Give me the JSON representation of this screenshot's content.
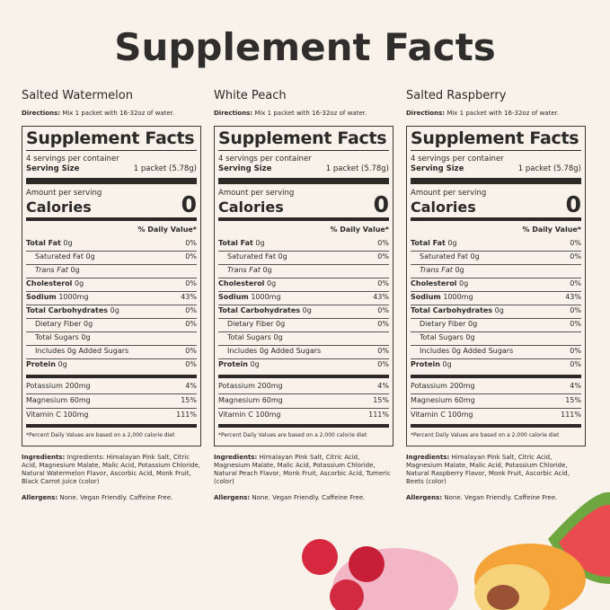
{
  "title": "Supplement Facts",
  "products": [
    {
      "name": "Salted Watermelon",
      "directions_label": "Directions:",
      "directions": "Mix 1 packet with 16-32oz of water.",
      "panel_title": "Supplement Facts",
      "servings": "4 servings per container",
      "serving_size_label": "Serving Size",
      "serving_size": "1 packet (5.78g)",
      "amount_label": "Amount per serving",
      "calories_label": "Calories",
      "calories": 0,
      "dv_header": "% Daily Value*",
      "rows": [
        {
          "label": "Total Fat",
          "amount": "0g",
          "dv": "0%"
        },
        {
          "label": "Saturated Fat",
          "amount": "0g",
          "dv": "0%"
        },
        {
          "label": "Trans Fat",
          "amount": "0g"
        },
        {
          "label": "Cholesterol",
          "amount": "0g",
          "dv": "0%"
        },
        {
          "label": "Sodium",
          "amount": "1000mg",
          "dv": "43%"
        },
        {
          "label": "Total Carbohydrates",
          "amount": "0g",
          "dv": "0%"
        },
        {
          "label": "Dietary Fiber",
          "amount": "0g",
          "dv": "0%"
        },
        {
          "label": "Total Sugars",
          "amount": "0g"
        },
        {
          "label": "Includes",
          "amount": "0g Added Sugars",
          "dv": "0%"
        },
        {
          "label": "Protein",
          "amount": "0g",
          "dv": "0%"
        },
        {
          "label": "Potassium",
          "amount": "200mg",
          "dv": "4%"
        },
        {
          "label": "Magnesium",
          "amount": "60mg",
          "dv": "15%"
        },
        {
          "label": "Vitamin C",
          "amount": "100mg",
          "dv": "111%"
        }
      ],
      "footnote": "*Percent Daily Values are based on a 2,000 calorie diet",
      "ingredients_label": "Ingredients:",
      "ingredients": "Ingredients: Himalayan Pink Salt, Citric Acid, Magnesium Malate, Malic Acid, Potassium Chloride, Natural Watermelon Flavor, Ascorbic Acid, Monk Fruit, Black Carrot juice (color)",
      "allergens_label": "Allergens:",
      "allergens": "None. Vegan Friendly. Caffeine Free."
    },
    {
      "name": "White Peach",
      "directions_label": "Directions:",
      "directions": "Mix 1 packet with 16-32oz of water.",
      "panel_title": "Supplement Facts",
      "servings": "4 servings per container",
      "serving_size_label": "Serving Size",
      "serving_size": "1 packet (5.78g)",
      "amount_label": "Amount per serving",
      "calories_label": "Calories",
      "calories": 0,
      "dv_header": "% Daily Value*",
      "rows": [
        {
          "label": "Total Fat",
          "amount": "0g",
          "dv": "0%"
        },
        {
          "label": "Saturated Fat",
          "amount": "0g",
          "dv": "0%"
        },
        {
          "label": "Trans Fat",
          "amount": "0g"
        },
        {
          "label": "Cholesterol",
          "amount": "0g",
          "dv": "0%"
        },
        {
          "label": "Sodium",
          "amount": "1000mg",
          "dv": "43%"
        },
        {
          "label": "Total Carbohydrates",
          "amount": "0g",
          "dv": "0%"
        },
        {
          "label": "Dietary Fiber",
          "amount": "0g",
          "dv": "0%"
        },
        {
          "label": "Total Sugars",
          "amount": "0g"
        },
        {
          "label": "Includes",
          "amount": "0g Added Sugars",
          "dv": "0%"
        },
        {
          "label": "Protein",
          "amount": "0g",
          "dv": "0%"
        },
        {
          "label": "Potassium",
          "amount": "200mg",
          "dv": "4%"
        },
        {
          "label": "Magnesium",
          "amount": "60mg",
          "dv": "15%"
        },
        {
          "label": "Vitamin C",
          "amount": "100mg",
          "dv": "111%"
        }
      ],
      "footnote": "*Percent Daily Values are based on a 2,000 calorie diet",
      "ingredients_label": "Ingredients:",
      "ingredients": "Himalayan Pink Salt, Citric Acid, Magnesium Malate, Malic Acid, Potassium Chloride, Natural Peach Flavor, Monk Fruit, Ascorbic Acid, Tumeric (color)",
      "allergens_label": "Allergens:",
      "allergens": "None. Vegan Friendly. Caffeine Free."
    },
    {
      "name": "Salted Raspberry",
      "directions_label": "Directions:",
      "directions": "Mix 1 packet with 16-32oz of water.",
      "panel_title": "Supplement Facts",
      "servings": "4 servings per container",
      "serving_size_label": "Serving Size",
      "serving_size": "1 packet (5.78g)",
      "amount_label": "Amount per serving",
      "calories_label": "Calories",
      "calories": 0,
      "dv_header": "% Daily Value*",
      "rows": [
        {
          "label": "Total Fat",
          "amount": "0g",
          "dv": "0%"
        },
        {
          "label": "Saturated Fat",
          "amount": "0g",
          "dv": "0%"
        },
        {
          "label": "Trans Fat",
          "amount": "0g"
        },
        {
          "label": "Cholesterol",
          "amount": "0g",
          "dv": "0%"
        },
        {
          "label": "Sodium",
          "amount": "1000mg",
          "dv": "43%"
        },
        {
          "label": "Total Carbohydrates",
          "amount": "0g",
          "dv": "0%"
        },
        {
          "label": "Dietary Fiber",
          "amount": "0g",
          "dv": "0%"
        },
        {
          "label": "Total Sugars",
          "amount": "0g"
        },
        {
          "label": "Includes",
          "amount": "0g Added Sugars",
          "dv": "0%"
        },
        {
          "label": "Protein",
          "amount": "0g",
          "dv": "0%"
        },
        {
          "label": "Potassium",
          "amount": "200mg",
          "dv": "4%"
        },
        {
          "label": "Magnesium",
          "amount": "60mg",
          "dv": "15%"
        },
        {
          "label": "Vitamin C",
          "amount": "100mg",
          "dv": "111%"
        }
      ],
      "footnote": "*Percent Daily Values are based on a 2,000 calorie diet",
      "ingredients_label": "Ingredients:",
      "ingredients": "Himalayan Pink Salt, Citric Acid, Magnesium Malate, Malic Acid, Potassium Chloride, Natural Raspberry Flavor, Monk Fruit, Ascorbic Acid, Beets (color)",
      "allergens_label": "Allergens:",
      "allergens": "None. Vegan Friendly. Caffeine Free."
    }
  ]
}
